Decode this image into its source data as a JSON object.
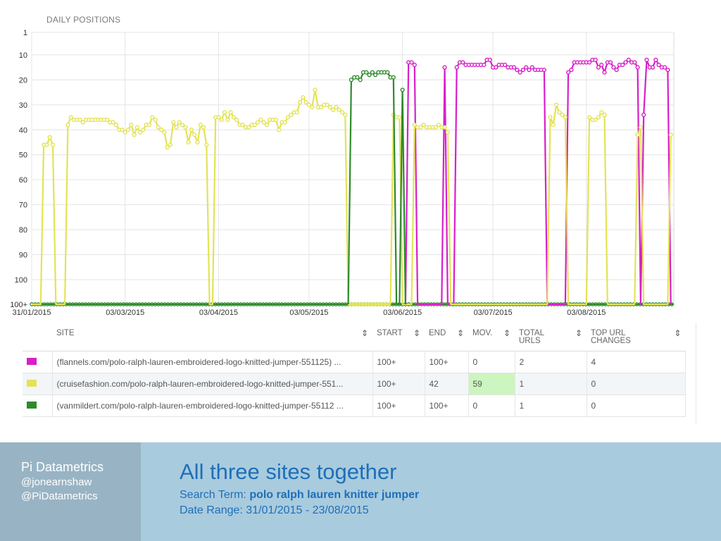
{
  "chart_data": {
    "type": "line",
    "title": "DAILY POSITIONS",
    "y_axis": {
      "reversed": true,
      "ticks": [
        "1",
        "10",
        "20",
        "30",
        "40",
        "50",
        "60",
        "70",
        "80",
        "90",
        "100",
        "100+"
      ]
    },
    "x_axis": {
      "type": "date",
      "range": [
        "2015-01-31",
        "2015-08-23"
      ],
      "ticks": [
        "31/01/2015",
        "03/03/2015",
        "03/04/2015",
        "03/05/2015",
        "03/06/2015",
        "03/07/2015",
        "03/08/2015"
      ]
    },
    "grid": true,
    "note": "",
    "series": [
      {
        "name": "flannels.com/polo-ralph-lauren-embroidered-logo-knitted-jumper-551125",
        "color": "#d81fc9",
        "points": [
          [
            "2015-06-04",
            "100+"
          ],
          [
            "2015-06-05",
            13
          ],
          [
            "2015-06-06",
            13
          ],
          [
            "2015-06-07",
            14
          ],
          [
            "2015-06-08",
            "100+"
          ],
          [
            "2015-06-16",
            "100+"
          ],
          [
            "2015-06-17",
            15
          ],
          [
            "2015-06-18",
            "100+"
          ],
          [
            "2015-06-20",
            "100+"
          ],
          [
            "2015-06-21",
            15
          ],
          [
            "2015-06-22",
            13
          ],
          [
            "2015-06-23",
            13
          ],
          [
            "2015-06-24",
            14
          ],
          [
            "2015-06-25",
            14
          ],
          [
            "2015-06-26",
            14
          ],
          [
            "2015-06-27",
            14
          ],
          [
            "2015-06-28",
            14
          ],
          [
            "2015-06-29",
            14
          ],
          [
            "2015-06-30",
            14
          ],
          [
            "2015-07-01",
            12
          ],
          [
            "2015-07-02",
            12
          ],
          [
            "2015-07-03",
            15
          ],
          [
            "2015-07-04",
            15
          ],
          [
            "2015-07-05",
            14
          ],
          [
            "2015-07-06",
            14
          ],
          [
            "2015-07-07",
            14
          ],
          [
            "2015-07-08",
            15
          ],
          [
            "2015-07-09",
            15
          ],
          [
            "2015-07-10",
            15
          ],
          [
            "2015-07-11",
            16
          ],
          [
            "2015-07-12",
            17
          ],
          [
            "2015-07-13",
            16
          ],
          [
            "2015-07-14",
            15
          ],
          [
            "2015-07-15",
            16
          ],
          [
            "2015-07-16",
            15
          ],
          [
            "2015-07-17",
            16
          ],
          [
            "2015-07-18",
            16
          ],
          [
            "2015-07-19",
            16
          ],
          [
            "2015-07-20",
            16
          ],
          [
            "2015-07-21",
            "100+"
          ],
          [
            "2015-07-27",
            "100+"
          ],
          [
            "2015-07-28",
            17
          ],
          [
            "2015-07-29",
            16
          ],
          [
            "2015-07-30",
            13
          ],
          [
            "2015-07-31",
            13
          ],
          [
            "2015-08-01",
            13
          ],
          [
            "2015-08-02",
            13
          ],
          [
            "2015-08-03",
            13
          ],
          [
            "2015-08-04",
            13
          ],
          [
            "2015-08-05",
            12
          ],
          [
            "2015-08-06",
            12
          ],
          [
            "2015-08-07",
            15
          ],
          [
            "2015-08-08",
            14
          ],
          [
            "2015-08-09",
            17
          ],
          [
            "2015-08-10",
            13
          ],
          [
            "2015-08-11",
            13
          ],
          [
            "2015-08-12",
            15
          ],
          [
            "2015-08-13",
            16
          ],
          [
            "2015-08-14",
            14
          ],
          [
            "2015-08-15",
            14
          ],
          [
            "2015-08-16",
            13
          ],
          [
            "2015-08-17",
            12
          ],
          [
            "2015-08-18",
            13
          ],
          [
            "2015-08-19",
            13
          ],
          [
            "2015-08-20",
            15
          ],
          [
            "2015-08-21",
            "100+"
          ],
          [
            "2015-08-22",
            34
          ],
          [
            "2015-08-23",
            12
          ],
          [
            "2015-08-24",
            15
          ],
          [
            "2015-08-25",
            15
          ],
          [
            "2015-08-26",
            12
          ],
          [
            "2015-08-27",
            14
          ],
          [
            "2015-08-28",
            15
          ],
          [
            "2015-08-29",
            15
          ],
          [
            "2015-08-30",
            16
          ],
          [
            "2015-08-31",
            "100+"
          ]
        ]
      },
      {
        "name": "cruisefashion.com/polo-ralph-lauren-embroidered-logo-knitted-jumper-551",
        "color": "#e3e356",
        "points": [
          [
            "2015-01-31",
            "100+"
          ],
          [
            "2015-02-01",
            "100+"
          ],
          [
            "2015-02-02",
            "100+"
          ],
          [
            "2015-02-03",
            "100+"
          ],
          [
            "2015-02-04",
            46
          ],
          [
            "2015-02-05",
            46
          ],
          [
            "2015-02-06",
            43
          ],
          [
            "2015-02-07",
            46
          ],
          [
            "2015-02-08",
            "100+"
          ],
          [
            "2015-02-11",
            "100+"
          ],
          [
            "2015-02-12",
            38
          ],
          [
            "2015-02-13",
            35
          ],
          [
            "2015-02-14",
            36
          ],
          [
            "2015-02-15",
            36
          ],
          [
            "2015-02-16",
            36
          ],
          [
            "2015-02-17",
            37
          ],
          [
            "2015-02-18",
            36
          ],
          [
            "2015-02-19",
            36
          ],
          [
            "2015-02-20",
            36
          ],
          [
            "2015-02-21",
            36
          ],
          [
            "2015-02-22",
            36
          ],
          [
            "2015-02-23",
            36
          ],
          [
            "2015-02-24",
            36
          ],
          [
            "2015-02-25",
            36
          ],
          [
            "2015-02-26",
            37
          ],
          [
            "2015-02-27",
            37
          ],
          [
            "2015-02-28",
            38
          ],
          [
            "2015-03-01",
            40
          ],
          [
            "2015-03-02",
            40
          ],
          [
            "2015-03-03",
            41
          ],
          [
            "2015-03-04",
            40
          ],
          [
            "2015-03-05",
            38
          ],
          [
            "2015-03-06",
            42
          ],
          [
            "2015-03-07",
            39
          ],
          [
            "2015-03-08",
            41
          ],
          [
            "2015-03-09",
            40
          ],
          [
            "2015-03-10",
            38
          ],
          [
            "2015-03-11",
            38
          ],
          [
            "2015-03-12",
            35
          ],
          [
            "2015-03-13",
            36
          ],
          [
            "2015-03-14",
            39
          ],
          [
            "2015-03-15",
            40
          ],
          [
            "2015-03-16",
            41
          ],
          [
            "2015-03-17",
            47
          ],
          [
            "2015-03-18",
            46
          ],
          [
            "2015-03-19",
            37
          ],
          [
            "2015-03-20",
            39
          ],
          [
            "2015-03-21",
            37
          ],
          [
            "2015-03-22",
            38
          ],
          [
            "2015-03-23",
            39
          ],
          [
            "2015-03-24",
            45
          ],
          [
            "2015-03-25",
            40
          ],
          [
            "2015-03-26",
            42
          ],
          [
            "2015-03-27",
            45
          ],
          [
            "2015-03-28",
            38
          ],
          [
            "2015-03-29",
            39
          ],
          [
            "2015-03-30",
            46
          ],
          [
            "2015-03-31",
            "100+"
          ],
          [
            "2015-04-01",
            "100+"
          ],
          [
            "2015-04-02",
            35
          ],
          [
            "2015-04-03",
            35
          ],
          [
            "2015-04-04",
            36
          ],
          [
            "2015-04-05",
            33
          ],
          [
            "2015-04-06",
            36
          ],
          [
            "2015-04-07",
            33
          ],
          [
            "2015-04-08",
            35
          ],
          [
            "2015-04-09",
            36
          ],
          [
            "2015-04-10",
            38
          ],
          [
            "2015-04-11",
            38
          ],
          [
            "2015-04-12",
            39
          ],
          [
            "2015-04-13",
            39
          ],
          [
            "2015-04-14",
            38
          ],
          [
            "2015-04-15",
            38
          ],
          [
            "2015-04-16",
            37
          ],
          [
            "2015-04-17",
            36
          ],
          [
            "2015-04-18",
            37
          ],
          [
            "2015-04-19",
            38
          ],
          [
            "2015-04-20",
            36
          ],
          [
            "2015-04-21",
            36
          ],
          [
            "2015-04-22",
            36
          ],
          [
            "2015-04-23",
            40
          ],
          [
            "2015-04-24",
            37
          ],
          [
            "2015-04-25",
            37
          ],
          [
            "2015-04-26",
            35
          ],
          [
            "2015-04-27",
            34
          ],
          [
            "2015-04-28",
            33
          ],
          [
            "2015-04-29",
            33
          ],
          [
            "2015-04-30",
            29
          ],
          [
            "2015-05-01",
            27
          ],
          [
            "2015-05-02",
            29
          ],
          [
            "2015-05-03",
            30
          ],
          [
            "2015-05-04",
            31
          ],
          [
            "2015-05-05",
            24
          ],
          [
            "2015-05-06",
            31
          ],
          [
            "2015-05-07",
            31
          ],
          [
            "2015-05-08",
            30
          ],
          [
            "2015-05-09",
            30
          ],
          [
            "2015-05-10",
            31
          ],
          [
            "2015-05-11",
            32
          ],
          [
            "2015-05-12",
            31
          ],
          [
            "2015-05-13",
            32
          ],
          [
            "2015-05-14",
            33
          ],
          [
            "2015-05-15",
            34
          ],
          [
            "2015-05-16",
            "100+"
          ],
          [
            "2015-05-30",
            "100+"
          ],
          [
            "2015-05-31",
            34
          ],
          [
            "2015-06-01",
            35
          ],
          [
            "2015-06-02",
            35
          ],
          [
            "2015-06-03",
            "100+"
          ],
          [
            "2015-06-06",
            "100+"
          ],
          [
            "2015-06-07",
            38
          ],
          [
            "2015-06-08",
            39
          ],
          [
            "2015-06-09",
            39
          ],
          [
            "2015-06-10",
            38
          ],
          [
            "2015-06-11",
            39
          ],
          [
            "2015-06-12",
            39
          ],
          [
            "2015-06-13",
            39
          ],
          [
            "2015-06-14",
            39
          ],
          [
            "2015-06-15",
            38
          ],
          [
            "2015-06-16",
            39
          ],
          [
            "2015-06-17",
            39
          ],
          [
            "2015-06-18",
            41
          ],
          [
            "2015-06-19",
            "100+"
          ],
          [
            "2015-07-21",
            "100+"
          ],
          [
            "2015-07-22",
            35
          ],
          [
            "2015-07-23",
            38
          ],
          [
            "2015-07-24",
            30
          ],
          [
            "2015-07-25",
            33
          ],
          [
            "2015-07-26",
            34
          ],
          [
            "2015-07-27",
            35
          ],
          [
            "2015-07-28",
            "100+"
          ],
          [
            "2015-08-03",
            "100+"
          ],
          [
            "2015-08-04",
            35
          ],
          [
            "2015-08-05",
            36
          ],
          [
            "2015-08-06",
            36
          ],
          [
            "2015-08-07",
            35
          ],
          [
            "2015-08-08",
            33
          ],
          [
            "2015-08-09",
            34
          ],
          [
            "2015-08-10",
            "100+"
          ],
          [
            "2015-08-19",
            "100+"
          ],
          [
            "2015-08-20",
            42
          ],
          [
            "2015-08-21",
            39
          ],
          [
            "2015-08-22",
            "100+"
          ],
          [
            "2015-08-30",
            "100+"
          ],
          [
            "2015-08-31",
            42
          ]
        ]
      },
      {
        "name": "vanmildert.com/polo-ralph-lauren-embroidered-logo-knitted-jumper-55112",
        "color": "#2f8a2c",
        "points": [
          [
            "2015-05-16",
            "100+"
          ],
          [
            "2015-05-17",
            20
          ],
          [
            "2015-05-18",
            19
          ],
          [
            "2015-05-19",
            19
          ],
          [
            "2015-05-20",
            20
          ],
          [
            "2015-05-21",
            17
          ],
          [
            "2015-05-22",
            17
          ],
          [
            "2015-05-23",
            18
          ],
          [
            "2015-05-24",
            17
          ],
          [
            "2015-05-25",
            18
          ],
          [
            "2015-05-26",
            17
          ],
          [
            "2015-05-27",
            17
          ],
          [
            "2015-05-28",
            17
          ],
          [
            "2015-05-29",
            17
          ],
          [
            "2015-05-30",
            19
          ],
          [
            "2015-05-31",
            19
          ],
          [
            "2015-06-01",
            "100+"
          ],
          [
            "2015-06-02",
            "100+"
          ],
          [
            "2015-06-03",
            24
          ],
          [
            "2015-06-04",
            "100+"
          ]
        ]
      }
    ]
  },
  "table": {
    "headers": {
      "site": "SITE",
      "start": "START",
      "end": "END",
      "mov": "MOV.",
      "total_urls": "TOTAL URLS",
      "top_url_changes": "TOP URL CHANGES"
    },
    "rows": [
      {
        "color": "#d81fc9",
        "site": "(flannels.com/polo-ralph-lauren-embroidered-logo-knitted-jumper-551125) ...",
        "start": "100+",
        "end": "100+",
        "mov": "0",
        "total_urls": "2",
        "top_url_changes": "4"
      },
      {
        "color": "#e3e356",
        "site": "(cruisefashion.com/polo-ralph-lauren-embroidered-logo-knitted-jumper-551...",
        "start": "100+",
        "end": "42",
        "mov": "59",
        "total_urls": "1",
        "top_url_changes": "0"
      },
      {
        "color": "#2f8a2c",
        "site": "(vanmildert.com/polo-ralph-lauren-embroidered-logo-knitted-jumper-55112 ...",
        "start": "100+",
        "end": "100+",
        "mov": "0",
        "total_urls": "1",
        "top_url_changes": "0"
      }
    ]
  },
  "footer": {
    "brand": "Pi Datametrics",
    "handles": [
      "@jonearnshaw",
      "@PiDatametrics"
    ],
    "title": "All three sites together",
    "search_label": "Search Term:",
    "search_term": "polo ralph lauren knitter jumper",
    "date_range_label": "Date Range:",
    "date_range": "31/01/2015 - 23/08/2015"
  }
}
